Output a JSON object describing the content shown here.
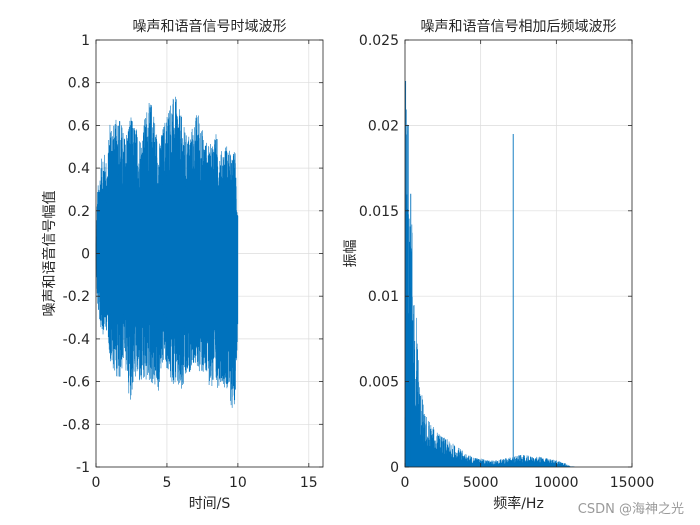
{
  "chart_data": [
    {
      "type": "line",
      "title": "噪声和语音信号时域波形",
      "xlabel": "时间/S",
      "ylabel": "噪声和语音信号幅值",
      "xlim": [
        0,
        16
      ],
      "ylim": [
        -1,
        1
      ],
      "x_ticks": [
        "0",
        "5",
        "10",
        "15"
      ],
      "y_ticks": [
        "-1",
        "-0.8",
        "-0.6",
        "-0.4",
        "-0.2",
        "0",
        "0.2",
        "0.4",
        "0.6",
        "0.8",
        "1"
      ],
      "grid": true,
      "series_color": "#0072BD",
      "signal_duration_s": 10,
      "envelope": {
        "t": [
          0,
          0.1,
          0.3,
          0.5,
          0.8,
          1.0,
          1.3,
          1.6,
          2.0,
          2.4,
          2.8,
          3.2,
          3.6,
          4.0,
          4.4,
          4.8,
          5.2,
          5.6,
          6.0,
          6.4,
          6.8,
          7.2,
          7.6,
          8.0,
          8.4,
          8.8,
          9.2,
          9.6,
          9.8,
          10.0
        ],
        "upper": [
          0.06,
          0.3,
          0.4,
          0.5,
          0.42,
          0.66,
          0.6,
          0.68,
          0.55,
          0.65,
          0.6,
          0.55,
          0.7,
          0.72,
          0.5,
          0.62,
          0.72,
          0.74,
          0.65,
          0.55,
          0.6,
          0.68,
          0.55,
          0.5,
          0.58,
          0.48,
          0.52,
          0.45,
          0.5,
          0.2
        ],
        "lower": [
          -0.05,
          -0.25,
          -0.35,
          -0.38,
          -0.36,
          -0.52,
          -0.55,
          -0.62,
          -0.5,
          -0.7,
          -0.58,
          -0.64,
          -0.6,
          -0.62,
          -0.66,
          -0.5,
          -0.6,
          -0.62,
          -0.68,
          -0.6,
          -0.52,
          -0.55,
          -0.58,
          -0.62,
          -0.66,
          -0.6,
          -0.64,
          -0.74,
          -0.7,
          -0.35
        ]
      }
    },
    {
      "type": "line",
      "title": "噪声和语音信号相加后频域波形",
      "xlabel": "频率/Hz",
      "ylabel": "振幅",
      "xlim": [
        0,
        15000
      ],
      "ylim": [
        0,
        0.025
      ],
      "x_ticks": [
        "0",
        "5000",
        "10000",
        "15000"
      ],
      "y_ticks": [
        "0",
        "0.005",
        "0.01",
        "0.015",
        "0.02",
        "0.025"
      ],
      "grid": true,
      "series_color": "#0072BD",
      "spectrum_envelope": {
        "f": [
          0,
          50,
          100,
          200,
          300,
          400,
          600,
          800,
          1000,
          1300,
          1600,
          2000,
          2500,
          3000,
          3500,
          4000,
          4500,
          5000,
          5500,
          6000,
          6500,
          7000,
          7500,
          8000,
          8500,
          9000,
          9500,
          10000,
          10500,
          10800,
          11000,
          11500,
          15000
        ],
        "amp": [
          0.004,
          0.0225,
          0.021,
          0.0195,
          0.013,
          0.016,
          0.0095,
          0.0085,
          0.005,
          0.003,
          0.0028,
          0.0022,
          0.0018,
          0.0015,
          0.0012,
          0.0008,
          0.0006,
          0.0005,
          0.0004,
          0.0004,
          0.0005,
          0.0006,
          0.0007,
          0.0007,
          0.0006,
          0.0006,
          0.0005,
          0.0004,
          0.0003,
          0.0001,
          5e-05,
          0,
          0
        ]
      },
      "peaks": [
        {
          "f": 7150,
          "amp": 0.0195
        },
        {
          "f": 40,
          "amp": 0.0226
        },
        {
          "f": 210,
          "amp": 0.02
        },
        {
          "f": 380,
          "amp": 0.016
        }
      ]
    }
  ],
  "watermark": "CSDN @海神之光"
}
